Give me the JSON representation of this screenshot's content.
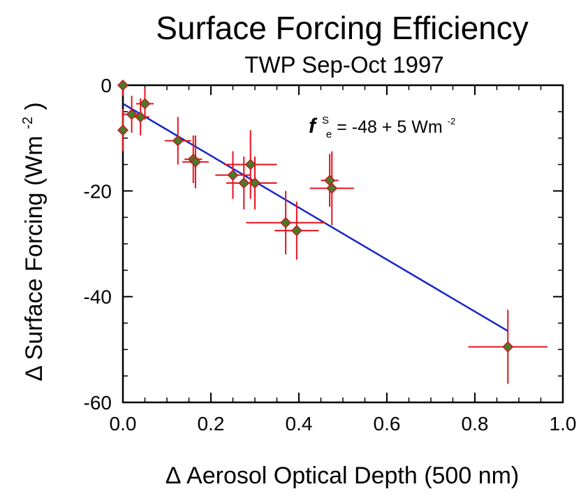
{
  "chart_data": {
    "type": "scatter",
    "title": "Surface Forcing Efficiency",
    "subtitle": "TWP Sep-Oct 1997",
    "xlabel": "Δ Aerosol Optical Depth (500 nm)",
    "ylabel_main": "Δ Surface Forcing (Wm",
    "ylabel_sup": "-2",
    "ylabel_close": ")",
    "xlim": [
      0,
      1.0
    ],
    "ylim": [
      -60,
      0
    ],
    "xticks": [
      "0.0",
      "0.2",
      "0.4",
      "0.6",
      "0.8",
      "1.0"
    ],
    "yticks": [
      "0",
      "-20",
      "-40",
      "-60"
    ],
    "annotation": {
      "symbol": "f",
      "sup": "S",
      "sub": "e",
      "text": " = -48 + 5 Wm",
      "unit_sup": "-2"
    },
    "points": [
      {
        "x": 0.0,
        "y": 0.0,
        "xerr": 0.01,
        "yerr": 2.0
      },
      {
        "x": 0.0,
        "y": -8.5,
        "xerr": 0.01,
        "yerr": 4.0
      },
      {
        "x": 0.02,
        "y": -5.5,
        "xerr": 0.02,
        "yerr": 3.5
      },
      {
        "x": 0.04,
        "y": -6.0,
        "xerr": 0.02,
        "yerr": 3.5
      },
      {
        "x": 0.05,
        "y": -3.5,
        "xerr": 0.02,
        "yerr": 3.0
      },
      {
        "x": 0.125,
        "y": -10.5,
        "xerr": 0.03,
        "yerr": 4.5
      },
      {
        "x": 0.16,
        "y": -14.0,
        "xerr": 0.02,
        "yerr": 4.5
      },
      {
        "x": 0.165,
        "y": -14.5,
        "xerr": 0.03,
        "yerr": 5.0
      },
      {
        "x": 0.25,
        "y": -17.0,
        "xerr": 0.04,
        "yerr": 4.5
      },
      {
        "x": 0.275,
        "y": -18.5,
        "xerr": 0.04,
        "yerr": 5.0
      },
      {
        "x": 0.29,
        "y": -15.0,
        "xerr": 0.06,
        "yerr": 6.5
      },
      {
        "x": 0.3,
        "y": -18.5,
        "xerr": 0.05,
        "yerr": 5.0
      },
      {
        "x": 0.37,
        "y": -26.0,
        "xerr": 0.09,
        "yerr": 6.0
      },
      {
        "x": 0.395,
        "y": -27.5,
        "xerr": 0.05,
        "yerr": 5.5
      },
      {
        "x": 0.47,
        "y": -18.0,
        "xerr": 0.02,
        "yerr": 5.0
      },
      {
        "x": 0.475,
        "y": -19.5,
        "xerr": 0.05,
        "yerr": 7.0
      },
      {
        "x": 0.875,
        "y": -49.5,
        "xerr": 0.09,
        "yerr": 7.0
      }
    ],
    "fit_line": {
      "x": [
        0.0,
        0.875
      ],
      "y": [
        -3.5,
        -46.5
      ]
    },
    "colors": {
      "marker_fill": "#4a7a2c",
      "marker_edge": "#c41a1a",
      "errorbar": "#e8101e",
      "fit_line": "#1626c8",
      "axes": "#000000"
    }
  }
}
